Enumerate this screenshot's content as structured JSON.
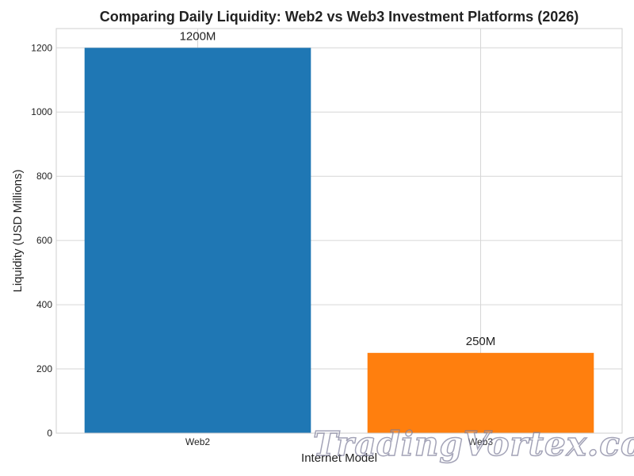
{
  "chart_data": {
    "type": "bar",
    "title": "Comparing Daily Liquidity: Web2 vs Web3 Investment Platforms (2026)",
    "xlabel": "Internet Model",
    "ylabel": "Liquidity (USD Millions)",
    "categories": [
      "Web2",
      "Web3"
    ],
    "values": [
      1200,
      250
    ],
    "data_labels": [
      "1200M",
      "250M"
    ],
    "ylim": [
      0,
      1260
    ],
    "yticks": [
      0,
      200,
      400,
      600,
      800,
      1000,
      1200
    ],
    "bar_colors": [
      "#1f77b4",
      "#ff7f0e"
    ],
    "grid": true
  },
  "watermark": {
    "text": "TradingVortex.com"
  },
  "colors": {
    "grid": "#d6d6d6",
    "axis": "#cfcfcf",
    "text": "#222222"
  }
}
